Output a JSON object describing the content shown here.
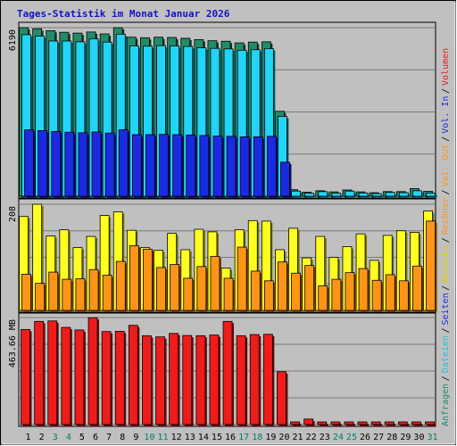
{
  "chart_data": {
    "type": "bar",
    "title": "Tages-Statistik im Monat Januar 2026",
    "days": [
      "1",
      "2",
      "3",
      "4",
      "5",
      "6",
      "7",
      "8",
      "9",
      "10",
      "11",
      "12",
      "13",
      "14",
      "15",
      "16",
      "17",
      "18",
      "19",
      "20",
      "21",
      "22",
      "23",
      "24",
      "25",
      "26",
      "27",
      "28",
      "29",
      "30",
      "31"
    ],
    "weekend_days": [
      "3",
      "4",
      "10",
      "11",
      "17",
      "18",
      "24",
      "25",
      "31"
    ],
    "panels": [
      {
        "id": "top",
        "ymax_label": "6190",
        "ymax": 6190,
        "series": [
          {
            "name": "Anfragen",
            "color": "#218b6a",
            "values": [
              6190,
              6150,
              6080,
              6020,
              5990,
              6030,
              5960,
              6190,
              5840,
              5820,
              5840,
              5830,
              5800,
              5750,
              5710,
              5690,
              5630,
              5660,
              5670,
              3120,
              240,
              150,
              200,
              160,
              230,
              160,
              130,
              170,
              170,
              280,
              180
            ]
          },
          {
            "name": "Dateien",
            "color": "#22d4f6",
            "values": [
              5930,
              5880,
              5700,
              5700,
              5670,
              5780,
              5660,
              5950,
              5520,
              5510,
              5530,
              5520,
              5500,
              5450,
              5430,
              5410,
              5360,
              5380,
              5420,
              2930,
              190,
              110,
              170,
              110,
              190,
              120,
              90,
              140,
              130,
              200,
              120
            ]
          },
          {
            "name": "Seiten",
            "color": "#1b2ae0",
            "values": [
              2440,
              2410,
              2380,
              2350,
              2330,
              2360,
              2320,
              2440,
              2260,
              2260,
              2270,
              2260,
              2250,
              2230,
              2210,
              2200,
              2180,
              2180,
              2200,
              1250,
              0,
              0,
              0,
              0,
              0,
              0,
              0,
              0,
              0,
              0,
              0
            ]
          }
        ]
      },
      {
        "id": "middle",
        "ymax_label": "208",
        "ymax": 208,
        "series": [
          {
            "name": "Besuche",
            "color": "#ffff22",
            "values": [
              184,
              208,
              146,
              158,
              123,
              145,
              186,
              193,
              157,
              123,
              118,
              151,
              119,
              159,
              154,
              83,
              158,
              176,
              175,
              119,
              161,
              103,
              145,
              104,
              125,
              150,
              98,
              147,
              156,
              153,
              195
            ]
          },
          {
            "name": "Rechner",
            "color": "#ff9418",
            "values": [
              71,
              53,
              75,
              61,
              62,
              80,
              69,
              96,
              127,
              120,
              84,
              90,
              63,
              86,
              106,
              63,
              124,
              77,
              58,
              95,
              73,
              88,
              48,
              61,
              74,
              82,
              59,
              70,
              58,
              87,
              175
            ]
          }
        ]
      },
      {
        "id": "bottom",
        "ymax_label": "463.66 MB",
        "ymax": 463.66,
        "series": [
          {
            "name": "Volumen",
            "color": "#ee1c1c",
            "values": [
              412,
              447,
              449,
              421,
              410,
              463,
              403,
              404,
              430,
              385,
              380,
              395,
              386,
              385,
              388,
              447,
              385,
              390,
              391,
              229,
              5,
              24,
              5,
              5,
              5,
              5,
              5,
              5,
              5,
              5,
              5
            ]
          }
        ]
      }
    ],
    "legend": [
      {
        "label": "Anfragen",
        "color": "#218b6a"
      },
      {
        "label": "Dateien",
        "color": "#22c1e0"
      },
      {
        "label": "Seiten",
        "color": "#1b2ae0"
      },
      {
        "label": "Besuche",
        "color": "#e0d000"
      },
      {
        "label": "Rechner",
        "color": "#ff9418"
      },
      {
        "label": "Vol. Out",
        "color": "#ff9418"
      },
      {
        "label": "Vol. In",
        "color": "#1b2ae0"
      },
      {
        "label": "Volumen",
        "color": "#ee1c1c"
      }
    ],
    "colors": {
      "background": "#c0c0c0",
      "title": "#1313c6",
      "gridline": "#7a7a7a",
      "day_label": "#000000",
      "weekend_day_label": "#00806a",
      "legend_separator": "#000000"
    }
  }
}
